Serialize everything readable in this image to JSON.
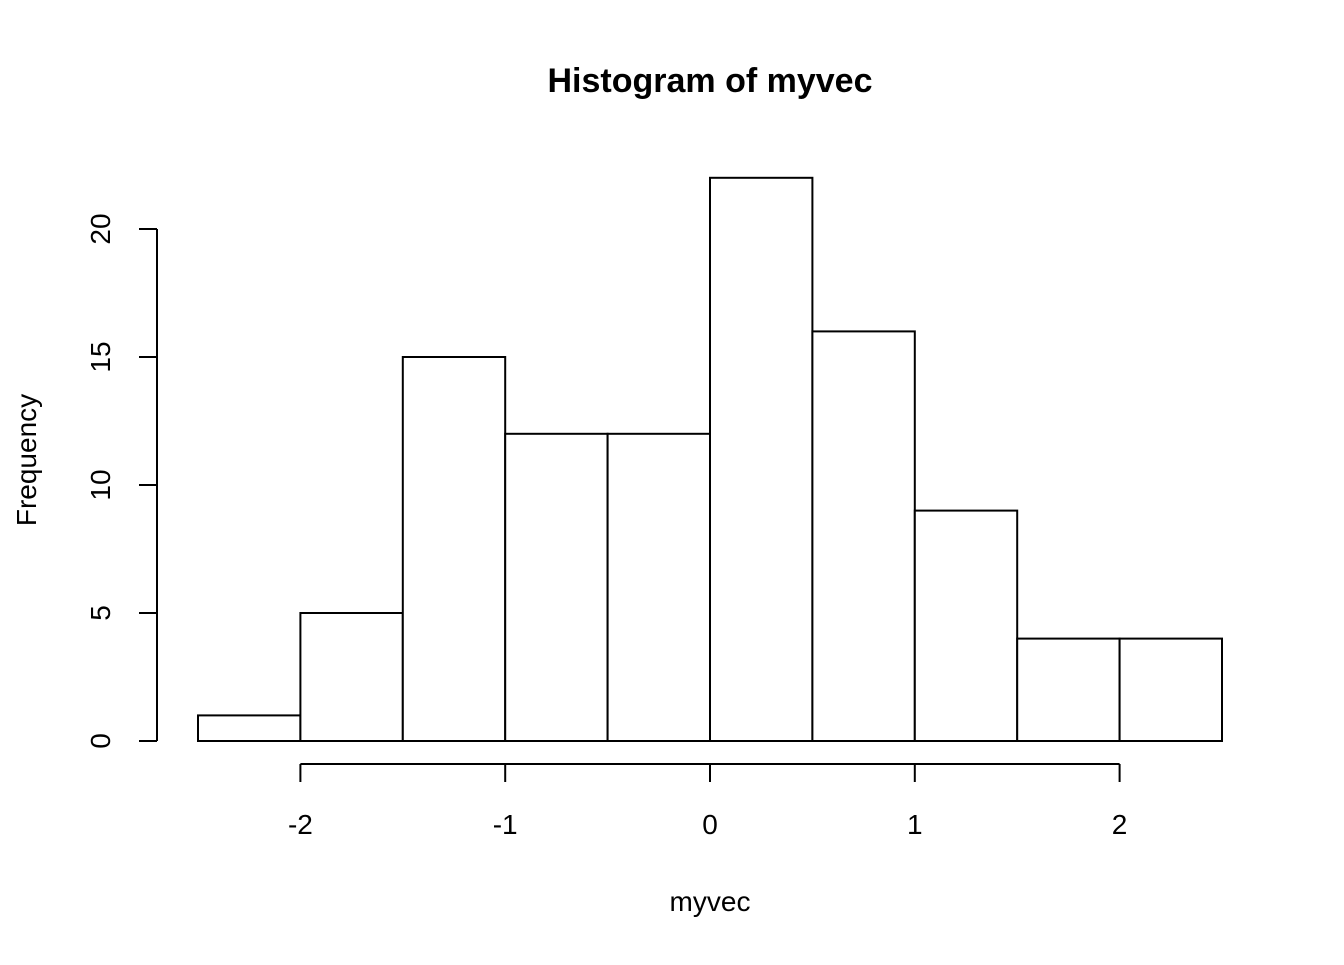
{
  "chart_data": {
    "type": "bar",
    "subtype": "histogram",
    "title": "Histogram of myvec",
    "xlabel": "myvec",
    "ylabel": "Frequency",
    "bins": [
      {
        "start": -2.5,
        "end": -2.0,
        "count": 1
      },
      {
        "start": -2.0,
        "end": -1.5,
        "count": 5
      },
      {
        "start": -1.5,
        "end": -1.0,
        "count": 15
      },
      {
        "start": -1.0,
        "end": -0.5,
        "count": 12
      },
      {
        "start": -0.5,
        "end": 0.0,
        "count": 12
      },
      {
        "start": 0.0,
        "end": 0.5,
        "count": 22
      },
      {
        "start": 0.5,
        "end": 1.0,
        "count": 16
      },
      {
        "start": 1.0,
        "end": 1.5,
        "count": 9
      },
      {
        "start": 1.5,
        "end": 2.0,
        "count": 4
      },
      {
        "start": 2.0,
        "end": 2.5,
        "count": 4
      }
    ],
    "xticks": [
      -2,
      -1,
      0,
      1,
      2
    ],
    "yticks": [
      0,
      5,
      10,
      15,
      20
    ],
    "xlim": [
      -2.5,
      2.5
    ],
    "ylim": [
      0,
      22
    ],
    "grid": false,
    "legend": false,
    "bar_fill": "#ffffff",
    "bar_stroke": "#000000"
  }
}
